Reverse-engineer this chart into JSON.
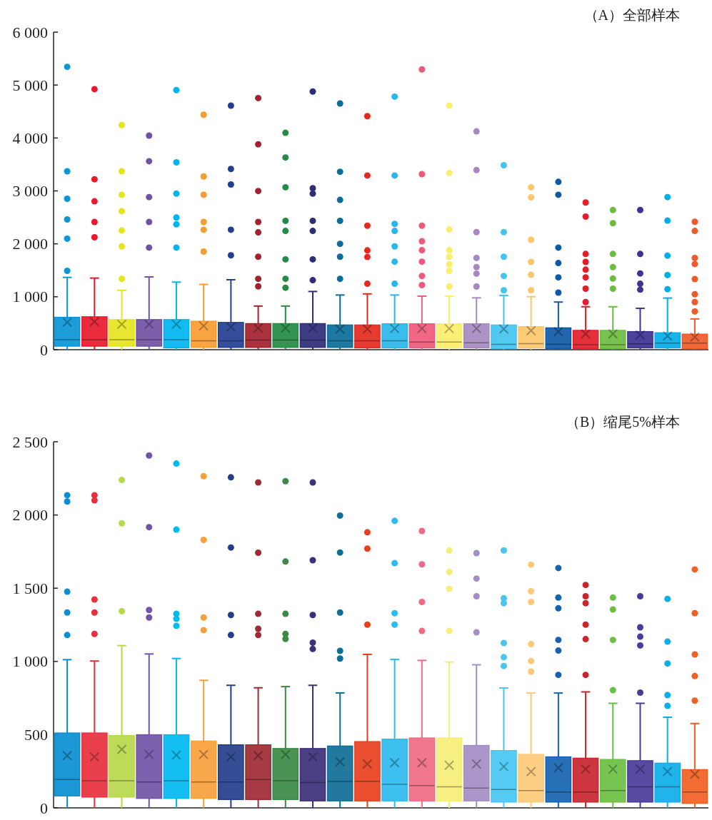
{
  "chart_data": [
    {
      "type": "box",
      "title": "（A）全部样本",
      "tick_labels": "y",
      "categories": [
        null,
        null,
        null,
        null,
        null,
        null,
        null,
        null,
        null,
        null,
        null,
        null,
        null,
        null,
        null,
        null,
        null,
        null,
        null,
        null,
        null,
        null,
        null,
        null
      ],
      "colors": [
        "#0a96d6",
        "#e8192c",
        "#e5e41f",
        "#7151a4",
        "#00b5ef",
        "#f89c31",
        "#233f94",
        "#a3212e",
        "#238b45",
        "#2e2d78",
        "#0a6d9a",
        "#e5291f",
        "#29b6ea",
        "#ee5a7b",
        "#fbee6a",
        "#a689c0",
        "#43c4f0",
        "#fdc66a",
        "#0d5aa7",
        "#e21e2a",
        "#6cbc3f",
        "#3e3292",
        "#05ade8",
        "#f05a28"
      ],
      "ylim": [
        0,
        6000
      ],
      "yticks": [
        {
          "value": 0,
          "label": "0"
        },
        {
          "value": 1000,
          "label": "1 000"
        },
        {
          "value": 2000,
          "label": "2 000"
        },
        {
          "value": 3000,
          "label": "3 000"
        },
        {
          "value": 4000,
          "label": "4 000"
        },
        {
          "value": 5000,
          "label": "5 000"
        },
        {
          "value": 6000,
          "label": "6 000"
        }
      ],
      "boxes": [
        {
          "low": 0,
          "q1": 67,
          "median": 190,
          "q3": 612,
          "high": 1366,
          "mean": 520,
          "outliers": [
            1490,
            2098,
            2461,
            2852,
            3371,
            5344
          ]
        },
        {
          "low": 0,
          "q1": 67,
          "median": 190,
          "q3": 621,
          "high": 1353,
          "mean": 530,
          "outliers": [
            2124,
            2413,
            2803,
            3220,
            4923
          ]
        },
        {
          "low": 0,
          "q1": 67,
          "median": 190,
          "q3": 568,
          "high": 1122,
          "mean": 480,
          "outliers": [
            1339,
            1951,
            2253,
            2617,
            2927,
            3371,
            4244
          ]
        },
        {
          "low": 0,
          "q1": 67,
          "median": 190,
          "q3": 568,
          "high": 1375,
          "mean": 480,
          "outliers": [
            1929,
            2413,
            2883,
            3561,
            4045
          ]
        },
        {
          "low": 0,
          "q1": 35,
          "median": 190,
          "q3": 568,
          "high": 1277,
          "mean": 480,
          "outliers": [
            1929,
            2368,
            2497,
            2949,
            3539,
            4905
          ]
        },
        {
          "low": 0,
          "q1": 44,
          "median": 169,
          "q3": 537,
          "high": 1233,
          "mean": 450,
          "outliers": [
            1854,
            2266,
            2413,
            2927,
            3273,
            4439
          ]
        },
        {
          "low": 0,
          "q1": 44,
          "median": 169,
          "q3": 514,
          "high": 1322,
          "mean": 430,
          "outliers": [
            1783,
            2266,
            3122,
            3415,
            4612
          ]
        },
        {
          "low": 0,
          "q1": 44,
          "median": 182,
          "q3": 492,
          "high": 825,
          "mean": 410,
          "outliers": [
            1197,
            1339,
            1756,
            2217,
            2413,
            2998,
            3881,
            4754
          ]
        },
        {
          "low": 0,
          "q1": 44,
          "median": 182,
          "q3": 492,
          "high": 825,
          "mean": 410,
          "outliers": [
            1171,
            1339,
            1707,
            2244,
            2435,
            3069,
            3632,
            4098
          ]
        },
        {
          "low": 0,
          "q1": 44,
          "median": 182,
          "q3": 492,
          "high": 1100,
          "mean": 410,
          "outliers": [
            1313,
            1707,
            2244,
            2435,
            2949,
            3051,
            4878
          ]
        },
        {
          "low": 0,
          "q1": 44,
          "median": 169,
          "q3": 466,
          "high": 1033,
          "mean": 390,
          "outliers": [
            1339,
            1756,
            2000,
            2435,
            2830,
            3362,
            4652
          ]
        },
        {
          "low": 0,
          "q1": 35,
          "median": 169,
          "q3": 466,
          "high": 1055,
          "mean": 390,
          "outliers": [
            1246,
            1752,
            1876,
            2342,
            3291,
            4413
          ]
        },
        {
          "low": 0,
          "q1": 35,
          "median": 169,
          "q3": 488,
          "high": 1033,
          "mean": 400,
          "outliers": [
            1246,
            1663,
            1951,
            2244,
            2377,
            3291,
            4781
          ]
        },
        {
          "low": 0,
          "q1": 35,
          "median": 146,
          "q3": 488,
          "high": 1011,
          "mean": 400,
          "outliers": [
            1220,
            1393,
            1663,
            1880,
            2049,
            2342,
            3317,
            5295
          ]
        },
        {
          "low": 0,
          "q1": 35,
          "median": 146,
          "q3": 488,
          "high": 1011,
          "mean": 400,
          "outliers": [
            1193,
            1490,
            1614,
            1756,
            1880,
            2271,
            3339,
            4612
          ]
        },
        {
          "low": 0,
          "q1": 35,
          "median": 133,
          "q3": 488,
          "high": 980,
          "mean": 400,
          "outliers": [
            1193,
            1437,
            1561,
            1734,
            2222,
            3393,
            4125
          ]
        },
        {
          "low": 0,
          "q1": 20,
          "median": 102,
          "q3": 466,
          "high": 1024,
          "mean": 390,
          "outliers": [
            1122,
            1393,
            1756,
            2222,
            3486
          ]
        },
        {
          "low": 0,
          "q1": 35,
          "median": 115,
          "q3": 435,
          "high": 1002,
          "mean": 360,
          "outliers": [
            1122,
            1415,
            1659,
            2076,
            2878,
            3069
          ]
        },
        {
          "low": 0,
          "q1": 20,
          "median": 102,
          "q3": 412,
          "high": 900,
          "mean": 340,
          "outliers": [
            1078,
            1366,
            1637,
            1929,
            2927,
            3171
          ]
        },
        {
          "low": 0,
          "q1": 20,
          "median": 93,
          "q3": 364,
          "high": 812,
          "mean": 300,
          "outliers": [
            900,
            1153,
            1366,
            1512,
            1659,
            1809,
            2515,
            2781
          ]
        },
        {
          "low": 0,
          "q1": 20,
          "median": 93,
          "q3": 364,
          "high": 812,
          "mean": 300,
          "outliers": [
            1153,
            1344,
            1561,
            1809,
            2390,
            2639
          ]
        },
        {
          "low": 0,
          "q1": 35,
          "median": 111,
          "q3": 341,
          "high": 781,
          "mean": 280,
          "outliers": [
            1135,
            1246,
            1441,
            1809,
            2639
          ]
        },
        {
          "low": 0,
          "q1": 35,
          "median": 124,
          "q3": 319,
          "high": 976,
          "mean": 260,
          "outliers": [
            1144,
            1410,
            1778,
            2439,
            2883
          ]
        },
        {
          "low": 0,
          "q1": 20,
          "median": 124,
          "q3": 293,
          "high": 581,
          "mean": 240,
          "outliers": [
            723,
            900,
            1047,
            1335,
            1619,
            1734,
            2244,
            2417
          ]
        }
      ]
    },
    {
      "type": "box",
      "title": "（B）缩尾5%样本",
      "tick_labels": "y",
      "categories": [
        null,
        null,
        null,
        null,
        null,
        null,
        null,
        null,
        null,
        null,
        null,
        null,
        null,
        null,
        null,
        null,
        null,
        null,
        null,
        null,
        null,
        null,
        null,
        null
      ],
      "colors": [
        "#0a8fd3",
        "#e8303f",
        "#b6d84a",
        "#7154a8",
        "#00b9f0",
        "#f7a03c",
        "#233e8c",
        "#9e2a33",
        "#3a8a45",
        "#3e2f7a",
        "#0f6e95",
        "#e8401e",
        "#2dbbef",
        "#ef6b84",
        "#f6ee76",
        "#a48dc4",
        "#46c7f2",
        "#fdc978",
        "#1563b0",
        "#c9252f",
        "#6bbf44",
        "#4a3b98",
        "#0eaee8",
        "#f15f22"
      ],
      "ylim": [
        0,
        2500
      ],
      "yticks": [
        {
          "value": 0,
          "label": "0"
        },
        {
          "value": 500,
          "label": "500"
        },
        {
          "value": 1000,
          "label": "1 000"
        },
        {
          "value": 1500,
          "label": "1 500"
        },
        {
          "value": 2000,
          "label": "2 000"
        },
        {
          "value": 2500,
          "label": "2 500"
        }
      ],
      "boxes": [
        {
          "low": 0,
          "q1": 82,
          "median": 194,
          "q3": 511,
          "high": 1012,
          "mean": 357,
          "outliers": [
            1180,
            1334,
            1476,
            2092,
            2135
          ]
        },
        {
          "low": 0,
          "q1": 74,
          "median": 185,
          "q3": 511,
          "high": 1003,
          "mean": 348,
          "outliers": [
            1188,
            1334,
            1423,
            2100,
            2135
          ]
        },
        {
          "low": 0,
          "q1": 74,
          "median": 185,
          "q3": 494,
          "high": 1108,
          "mean": 400,
          "outliers": [
            1343,
            1943,
            2239
          ]
        },
        {
          "low": 0,
          "q1": 65,
          "median": 177,
          "q3": 499,
          "high": 1051,
          "mean": 365,
          "outliers": [
            1300,
            1351,
            1917,
            2406
          ]
        },
        {
          "low": 0,
          "q1": 65,
          "median": 185,
          "q3": 499,
          "high": 1020,
          "mean": 360,
          "outliers": [
            1243,
            1291,
            1325,
            1900,
            2351
          ]
        },
        {
          "low": 0,
          "q1": 65,
          "median": 177,
          "q3": 456,
          "high": 871,
          "mean": 365,
          "outliers": [
            1214,
            1300,
            1830,
            2265
          ]
        },
        {
          "low": 0,
          "q1": 57,
          "median": 177,
          "q3": 430,
          "high": 837,
          "mean": 348,
          "outliers": [
            1180,
            1317,
            1778,
            2257
          ]
        },
        {
          "low": 0,
          "q1": 57,
          "median": 194,
          "q3": 430,
          "high": 820,
          "mean": 357,
          "outliers": [
            1180,
            1223,
            1325,
            1742,
            2222
          ]
        },
        {
          "low": 0,
          "q1": 57,
          "median": 185,
          "q3": 405,
          "high": 828,
          "mean": 365,
          "outliers": [
            1154,
            1188,
            1325,
            1682,
            2231
          ]
        },
        {
          "low": 0,
          "q1": 48,
          "median": 173,
          "q3": 405,
          "high": 837,
          "mean": 348,
          "outliers": [
            1085,
            1128,
            1317,
            1691,
            2222
          ]
        },
        {
          "low": 0,
          "q1": 48,
          "median": 180,
          "q3": 422,
          "high": 785,
          "mean": 314,
          "outliers": [
            1020,
            1072,
            1334,
            1744,
            1996
          ]
        },
        {
          "low": 0,
          "q1": 48,
          "median": 182,
          "q3": 452,
          "high": 1048,
          "mean": 300,
          "outliers": [
            1251,
            1770,
            1882
          ]
        },
        {
          "low": 0,
          "q1": 48,
          "median": 161,
          "q3": 469,
          "high": 1014,
          "mean": 308,
          "outliers": [
            1251,
            1329,
            1671,
            1960
          ]
        },
        {
          "low": 0,
          "q1": 48,
          "median": 152,
          "q3": 477,
          "high": 1007,
          "mean": 308,
          "outliers": [
            1208,
            1406,
            1663,
            1891
          ]
        },
        {
          "low": 0,
          "q1": 48,
          "median": 144,
          "q3": 477,
          "high": 996,
          "mean": 291,
          "outliers": [
            1208,
            1496,
            1611,
            1758
          ]
        },
        {
          "low": 0,
          "q1": 48,
          "median": 135,
          "q3": 426,
          "high": 977,
          "mean": 300,
          "outliers": [
            1199,
            1445,
            1566,
            1740
          ]
        },
        {
          "low": 0,
          "q1": 40,
          "median": 126,
          "q3": 391,
          "high": 819,
          "mean": 282,
          "outliers": [
            969,
            1029,
            1126,
            1398,
            1432,
            1758
          ]
        },
        {
          "low": 0,
          "q1": 40,
          "median": 118,
          "q3": 365,
          "high": 784,
          "mean": 248,
          "outliers": [
            931,
            1003,
            1118,
            1406,
            1479,
            1661
          ]
        },
        {
          "low": 0,
          "q1": 40,
          "median": 109,
          "q3": 348,
          "high": 784,
          "mean": 274,
          "outliers": [
            908,
            1074,
            1147,
            1363,
            1436,
            1638
          ]
        },
        {
          "low": 0,
          "q1": 40,
          "median": 109,
          "q3": 339,
          "high": 792,
          "mean": 265,
          "outliers": [
            908,
            1152,
            1251,
            1398,
            1445,
            1522
          ]
        },
        {
          "low": 0,
          "q1": 40,
          "median": 118,
          "q3": 330,
          "high": 714,
          "mean": 265,
          "outliers": [
            804,
            1147,
            1355,
            1436
          ]
        },
        {
          "low": 0,
          "q1": 40,
          "median": 144,
          "q3": 322,
          "high": 714,
          "mean": 265,
          "outliers": [
            787,
            1109,
            1169,
            1233,
            1445
          ]
        },
        {
          "low": 0,
          "q1": 40,
          "median": 144,
          "q3": 305,
          "high": 619,
          "mean": 248,
          "outliers": [
            697,
            770,
            986,
            1135,
            1427
          ]
        },
        {
          "low": 0,
          "q1": 31,
          "median": 109,
          "q3": 261,
          "high": 576,
          "mean": 230,
          "outliers": [
            732,
            900,
            1048,
            1329,
            1628
          ]
        }
      ]
    }
  ]
}
